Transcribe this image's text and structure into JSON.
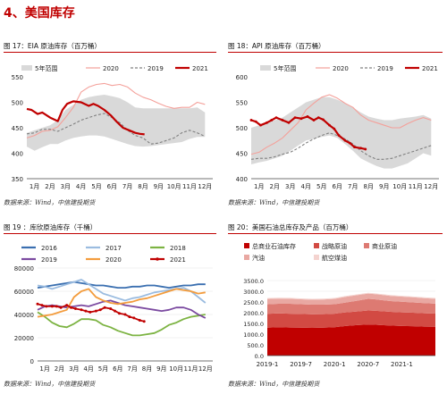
{
  "section": {
    "title": "4、美国库存"
  },
  "figures": {
    "f17": {
      "title": "图 17：EIA 原油库存（百万桶）",
      "source": "数据来源：Wind，中信建投期货"
    },
    "f18": {
      "title": "图 18：API 原油库存（百万桶）",
      "source": "数据来源：Wind，中信建投期货"
    },
    "f19": {
      "title": "图 19 ：库欣原油库存（千桶）",
      "source": "数据来源：Wind，中信建投期货"
    },
    "f20": {
      "title": "图 20：美国石油总库存及产品（百万桶）",
      "source": "数据来源：Wind，中信建投期货"
    }
  },
  "colors": {
    "accent": "#c00000",
    "band": "#d9d9d9",
    "y2020": "#f4a09a",
    "y2019": "#808080",
    "y2021": "#c00000"
  },
  "chart_data": [
    {
      "id": "f17",
      "type": "line",
      "x_ticks": [
        "1月",
        "2月",
        "3月",
        "4月",
        "5月",
        "6月",
        "7月",
        "8月",
        "9月",
        "10月",
        "11月",
        "12月"
      ],
      "ylim": [
        350,
        550
      ],
      "y_ticks": [
        350,
        400,
        450,
        500,
        550
      ],
      "legend": [
        "5年范围",
        "2020",
        "2019",
        "2021"
      ],
      "band": {
        "name": "5年范围",
        "x": [
          1,
          1.5,
          2,
          2.5,
          3,
          3.5,
          4,
          4.5,
          5,
          5.5,
          6,
          6.5,
          7,
          7.5,
          8,
          8.5,
          9,
          9.5,
          10,
          10.5,
          11,
          11.5,
          12,
          12.5
        ],
        "low": [
          413,
          405,
          412,
          418,
          418,
          425,
          430,
          433,
          435,
          435,
          433,
          428,
          423,
          418,
          414,
          413,
          414,
          416,
          418,
          420,
          422,
          428,
          432,
          432
        ],
        "high": [
          440,
          445,
          450,
          455,
          465,
          485,
          495,
          505,
          510,
          513,
          515,
          512,
          508,
          500,
          490,
          488,
          488,
          488,
          488,
          488,
          488,
          488,
          490,
          480
        ]
      },
      "series": [
        {
          "name": "2020",
          "style": "solid",
          "x": [
            1,
            1.5,
            2,
            2.5,
            3,
            3.5,
            4,
            4.5,
            5,
            5.5,
            6,
            6.5,
            7,
            7.5,
            8,
            8.5,
            9,
            9.5,
            10,
            10.5,
            11,
            11.5,
            12,
            12.5
          ],
          "values": [
            430,
            435,
            443,
            445,
            452,
            470,
            490,
            520,
            530,
            535,
            537,
            533,
            535,
            530,
            518,
            510,
            505,
            498,
            492,
            488,
            490,
            490,
            500,
            496
          ]
        },
        {
          "name": "2019",
          "style": "dashed",
          "x": [
            1,
            1.5,
            2,
            2.5,
            3,
            3.5,
            4,
            4.5,
            5,
            5.5,
            6,
            6.5,
            7,
            7.5,
            8,
            8.5,
            9,
            9.5,
            10,
            10.5,
            11,
            11.5,
            12,
            12.5
          ],
          "values": [
            438,
            440,
            447,
            447,
            443,
            450,
            457,
            465,
            470,
            475,
            478,
            470,
            460,
            445,
            435,
            430,
            418,
            420,
            425,
            430,
            440,
            445,
            440,
            433
          ]
        },
        {
          "name": "2021",
          "style": "solid",
          "x": [
            1,
            1.3,
            1.7,
            2,
            2.5,
            3,
            3.3,
            3.6,
            4,
            4.5,
            5,
            5.3,
            5.6,
            6,
            6.4,
            6.8,
            7.2,
            7.6,
            8,
            8.3,
            8.6
          ],
          "values": [
            487,
            485,
            477,
            480,
            470,
            463,
            485,
            497,
            502,
            500,
            493,
            497,
            493,
            485,
            475,
            462,
            450,
            445,
            440,
            438,
            437
          ]
        }
      ]
    },
    {
      "id": "f18",
      "type": "line",
      "x_ticks": [
        "1月",
        "2月",
        "3月",
        "4月",
        "5月",
        "6月",
        "7月",
        "8月",
        "9月",
        "10月",
        "11月",
        "12月"
      ],
      "ylim": [
        400,
        600
      ],
      "y_ticks": [
        400,
        450,
        500,
        550,
        600
      ],
      "legend": [
        "5年范围",
        "2020",
        "2019",
        "2021"
      ],
      "band": {
        "name": "5年范围",
        "x": [
          1,
          1.5,
          2,
          2.5,
          3,
          3.5,
          4,
          4.5,
          5,
          5.5,
          6,
          6.5,
          7,
          7.5,
          8,
          8.5,
          9,
          9.5,
          10,
          10.5,
          11,
          11.5,
          12,
          12.5
        ],
        "low": [
          428,
          432,
          435,
          440,
          445,
          455,
          465,
          475,
          478,
          482,
          485,
          480,
          468,
          455,
          440,
          432,
          425,
          420,
          420,
          425,
          430,
          440,
          450,
          445
        ],
        "high": [
          500,
          505,
          510,
          515,
          520,
          530,
          540,
          550,
          555,
          560,
          560,
          555,
          548,
          540,
          530,
          522,
          518,
          515,
          515,
          518,
          520,
          522,
          525,
          518
        ]
      },
      "series": [
        {
          "name": "2020",
          "style": "solid",
          "x": [
            1,
            1.5,
            2,
            2.5,
            3,
            3.5,
            4,
            4.5,
            5,
            5.5,
            6,
            6.5,
            7,
            7.5,
            8,
            8.5,
            9,
            9.5,
            10,
            10.5,
            11,
            11.5,
            12,
            12.5
          ],
          "values": [
            448,
            452,
            462,
            470,
            480,
            495,
            510,
            535,
            548,
            560,
            565,
            558,
            548,
            540,
            525,
            515,
            510,
            505,
            500,
            500,
            508,
            515,
            520,
            515
          ]
        },
        {
          "name": "2019",
          "style": "dashed",
          "x": [
            1,
            1.5,
            2,
            2.5,
            3,
            3.5,
            4,
            4.5,
            5,
            5.5,
            6,
            6.5,
            7,
            7.5,
            8,
            8.5,
            9,
            9.5,
            10,
            10.5,
            11,
            11.5,
            12,
            12.5
          ],
          "values": [
            438,
            440,
            440,
            443,
            448,
            452,
            460,
            470,
            478,
            485,
            490,
            485,
            478,
            468,
            455,
            445,
            438,
            438,
            440,
            445,
            450,
            455,
            460,
            465
          ]
        },
        {
          "name": "2021",
          "style": "solid",
          "x": [
            1,
            1.3,
            1.6,
            2,
            2.3,
            2.6,
            3,
            3.4,
            3.8,
            4.2,
            4.6,
            5,
            5.3,
            5.6,
            6,
            6.3,
            6.6,
            7,
            7.3,
            7.6,
            8,
            8.3
          ],
          "values": [
            515,
            512,
            505,
            510,
            515,
            520,
            515,
            510,
            520,
            518,
            522,
            515,
            520,
            516,
            505,
            498,
            485,
            475,
            470,
            462,
            460,
            458
          ]
        }
      ]
    },
    {
      "id": "f19",
      "type": "line",
      "x_ticks": [
        "1月",
        "2月",
        "3月",
        "4月",
        "5月",
        "6月",
        "7月",
        "8月",
        "9月",
        "10月",
        "11月",
        "12月"
      ],
      "ylim": [
        0,
        80000
      ],
      "y_ticks": [
        0,
        20000,
        40000,
        60000,
        80000
      ],
      "legend": [
        "2016",
        "2017",
        "2018",
        "2019",
        "2020",
        "2021"
      ],
      "series": [
        {
          "name": "2016",
          "color": "#3a6fb0",
          "x": [
            1,
            1.5,
            2,
            2.5,
            3,
            3.5,
            4,
            4.5,
            5,
            5.5,
            6,
            6.5,
            7,
            7.5,
            8,
            8.5,
            9,
            9.5,
            10,
            10.5,
            11,
            11.5,
            12,
            12.5
          ],
          "values": [
            63000,
            64000,
            65000,
            66000,
            67000,
            68000,
            67000,
            66000,
            65000,
            65000,
            64000,
            63000,
            63000,
            64000,
            64000,
            65000,
            65000,
            64000,
            63000,
            64000,
            65000,
            65000,
            66000,
            66000
          ]
        },
        {
          "name": "2017",
          "color": "#9bbce0",
          "x": [
            1,
            1.5,
            2,
            2.5,
            3,
            3.5,
            4,
            4.5,
            5,
            5.5,
            6,
            6.5,
            7,
            7.5,
            8,
            8.5,
            9,
            9.5,
            10,
            10.5,
            11,
            11.5,
            12,
            12.5
          ],
          "values": [
            65000,
            64000,
            62000,
            64000,
            66000,
            68000,
            70000,
            66000,
            62000,
            58000,
            56000,
            54000,
            52000,
            54000,
            55000,
            57000,
            59000,
            60000,
            61000,
            62000,
            63000,
            60000,
            55000,
            50000
          ]
        },
        {
          "name": "2018",
          "color": "#7cb342",
          "x": [
            1,
            1.5,
            2,
            2.5,
            3,
            3.5,
            4,
            4.5,
            5,
            5.5,
            6,
            6.5,
            7,
            7.5,
            8,
            8.5,
            9,
            9.5,
            10,
            10.5,
            11,
            11.5,
            12,
            12.5
          ],
          "values": [
            42000,
            38000,
            33000,
            30000,
            29000,
            32000,
            36000,
            36000,
            35000,
            31000,
            29000,
            26000,
            24000,
            22000,
            22000,
            23000,
            24000,
            27000,
            31000,
            33000,
            36000,
            38000,
            39000,
            40000
          ]
        },
        {
          "name": "2019",
          "color": "#7b4aa0",
          "x": [
            1,
            1.5,
            2,
            2.5,
            3,
            3.5,
            4,
            4.5,
            5,
            5.5,
            6,
            6.5,
            7,
            7.5,
            8,
            8.5,
            9,
            9.5,
            10,
            10.5,
            11,
            11.5,
            12,
            12.5
          ],
          "values": [
            44000,
            47000,
            48000,
            47000,
            46000,
            47000,
            48000,
            47000,
            49000,
            51000,
            52000,
            50000,
            48000,
            47000,
            46000,
            45000,
            44000,
            43000,
            44000,
            46000,
            46000,
            44000,
            40000,
            37000
          ]
        },
        {
          "name": "2020",
          "color": "#f39c3d",
          "x": [
            1,
            1.5,
            2,
            2.5,
            3,
            3.5,
            4,
            4.5,
            5,
            5.5,
            6,
            6.5,
            7,
            7.5,
            8,
            8.5,
            9,
            9.5,
            10,
            10.5,
            11,
            11.5,
            12,
            12.5
          ],
          "values": [
            38000,
            39000,
            40000,
            42000,
            44000,
            55000,
            60000,
            62000,
            55000,
            52000,
            50000,
            49000,
            50000,
            51000,
            53000,
            54000,
            56000,
            58000,
            60000,
            62000,
            61000,
            60000,
            58000,
            59000
          ]
        },
        {
          "name": "2021",
          "color": "#c00000",
          "marker": true,
          "x": [
            1,
            1.3,
            1.6,
            2,
            2.3,
            2.6,
            3,
            3.3,
            3.6,
            4,
            4.3,
            4.6,
            5,
            5.3,
            5.6,
            6,
            6.3,
            6.6,
            7,
            7.3,
            7.6,
            8,
            8.3
          ],
          "values": [
            49000,
            48000,
            47000,
            47000,
            47000,
            46000,
            48000,
            46000,
            45000,
            44000,
            43000,
            42000,
            43000,
            44000,
            46000,
            45000,
            43000,
            41000,
            40000,
            38000,
            37000,
            35000,
            34000
          ]
        }
      ]
    },
    {
      "id": "f20",
      "type": "area",
      "x_ticks": [
        "2019-1",
        "2019-7",
        "2020-1",
        "2020-7",
        "2021-1"
      ],
      "x_tick_positions": [
        0,
        6,
        12,
        18,
        24
      ],
      "ylim": [
        0,
        3500
      ],
      "y_ticks": [
        "0.0",
        "500.0",
        "1000.0",
        "1500.0",
        "2000.0",
        "2500.0",
        "3000.0",
        "3500.0"
      ],
      "legend": [
        "总商业石油库存",
        "战略原油",
        "商业原油",
        "汽油",
        "航空煤油"
      ],
      "x": [
        0,
        2,
        4,
        6,
        8,
        10,
        12,
        14,
        16,
        18,
        19,
        20,
        22,
        24,
        26,
        28,
        30
      ],
      "series": [
        {
          "name": "总商业石油库存",
          "color": "#c00000",
          "values": [
            1300,
            1320,
            1310,
            1300,
            1290,
            1300,
            1320,
            1380,
            1420,
            1450,
            1440,
            1430,
            1400,
            1380,
            1370,
            1350,
            1340
          ]
        },
        {
          "name": "战略原油",
          "color": "#d24a43",
          "values": [
            650,
            645,
            645,
            640,
            640,
            635,
            635,
            635,
            640,
            655,
            655,
            650,
            640,
            638,
            630,
            625,
            620
          ]
        },
        {
          "name": "商业原油",
          "color": "#dd7a72",
          "values": [
            440,
            450,
            460,
            455,
            445,
            440,
            440,
            460,
            500,
            540,
            535,
            520,
            500,
            490,
            480,
            470,
            460
          ]
        },
        {
          "name": "汽油",
          "color": "#e9a8a2",
          "values": [
            250,
            245,
            235,
            230,
            230,
            240,
            250,
            265,
            255,
            245,
            240,
            240,
            245,
            240,
            235,
            230,
            225
          ]
        },
        {
          "name": "航空煤油",
          "color": "#f4d3cf",
          "values": [
            42,
            42,
            43,
            43,
            42,
            42,
            42,
            41,
            40,
            39,
            39,
            40,
            40,
            40,
            41,
            42,
            42
          ]
        }
      ]
    }
  ]
}
